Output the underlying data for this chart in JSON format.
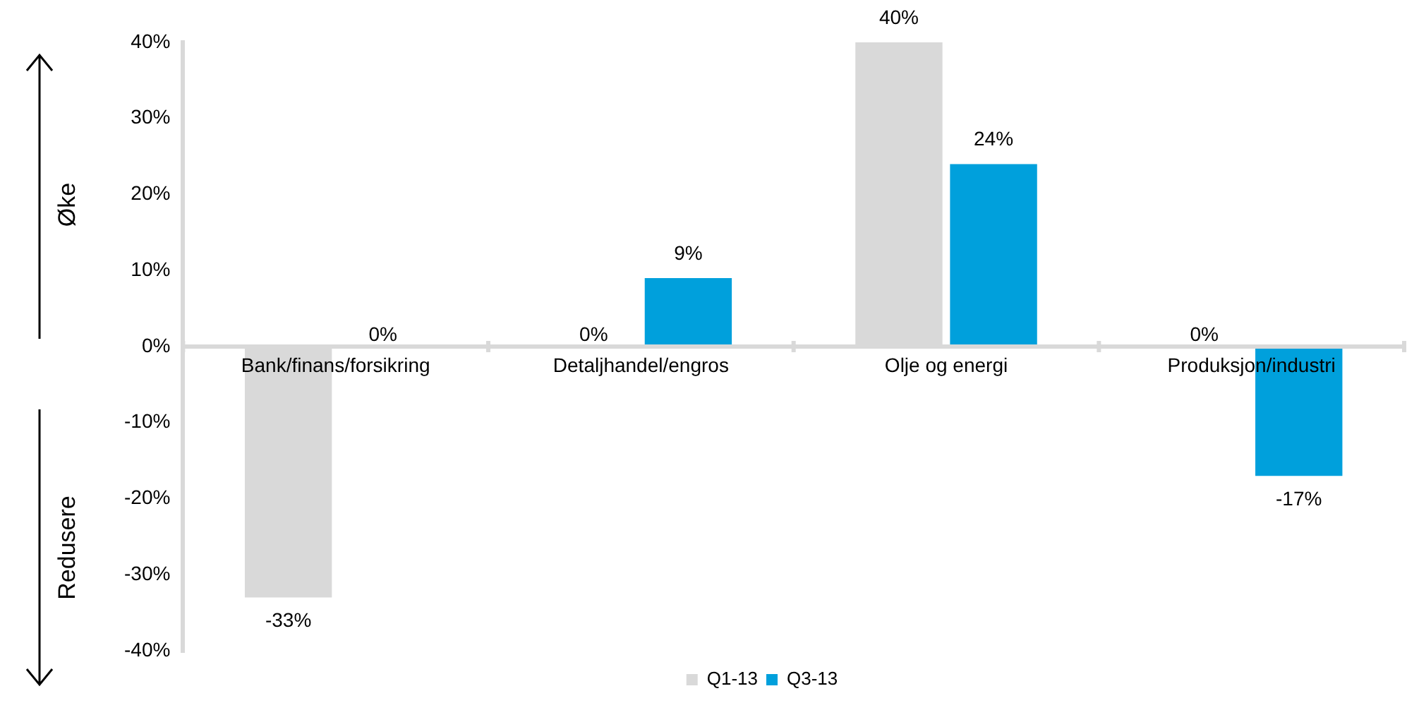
{
  "chart_data": {
    "type": "bar",
    "categories": [
      "Bank/finans/forsikring",
      "Detaljhandel/engros",
      "Olje og energi",
      "Produksjon/industri"
    ],
    "series": [
      {
        "name": "Q1-13",
        "color": "#d9d9d9",
        "values": [
          -33,
          0,
          40,
          0
        ],
        "value_labels": [
          "-33%",
          "0%",
          "40%",
          "0%"
        ]
      },
      {
        "name": "Q3-13",
        "color": "#00a0dc",
        "values": [
          0,
          9,
          24,
          -17
        ],
        "value_labels": [
          "0%",
          "9%",
          "24%",
          "-17%"
        ]
      }
    ],
    "ylim": [
      -40,
      40
    ],
    "yticks": [
      {
        "value": -40,
        "label": "-40%"
      },
      {
        "value": -30,
        "label": "-30%"
      },
      {
        "value": -20,
        "label": "-20%"
      },
      {
        "value": -10,
        "label": "-10%"
      },
      {
        "value": 0,
        "label": "0%"
      },
      {
        "value": 10,
        "label": "10%"
      },
      {
        "value": 20,
        "label": "20%"
      },
      {
        "value": 30,
        "label": "30%"
      },
      {
        "value": 40,
        "label": "40%"
      }
    ],
    "grid": false,
    "legend": "bottom",
    "annotations": [
      "Øke",
      "Redusere"
    ]
  }
}
